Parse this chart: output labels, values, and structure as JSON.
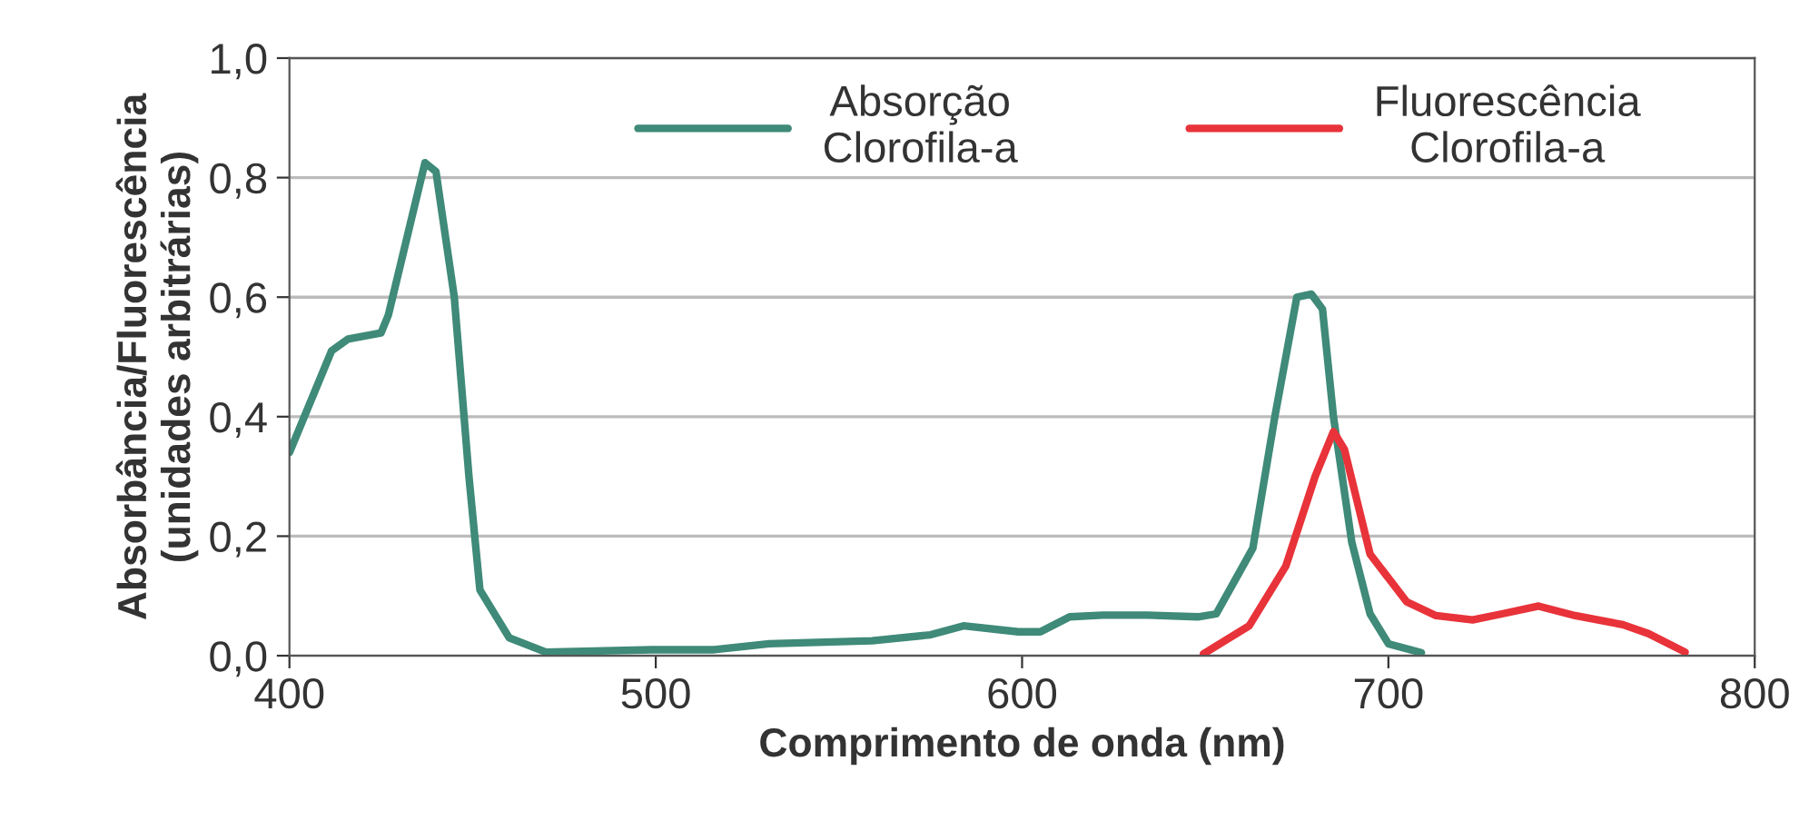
{
  "chart_data": {
    "type": "line",
    "xlabel": "Comprimento de onda (nm)",
    "ylabel": "Absorbância/Fluorescência\n(unidades arbitrárias)",
    "series": [
      {
        "name": "Absorção\nClorofila-a",
        "color": "#3f8a78",
        "x": [
          400,
          411.5,
          416,
          425,
          427,
          437,
          440,
          445,
          449,
          452,
          460,
          470,
          499,
          516,
          531,
          559,
          575,
          584,
          599,
          605,
          613,
          622,
          634,
          648,
          653,
          663,
          669,
          675,
          679,
          682,
          685,
          690,
          695,
          700,
          709
        ],
        "values": [
          0.34,
          0.51,
          0.53,
          0.54,
          0.57,
          0.825,
          0.81,
          0.6,
          0.3,
          0.11,
          0.03,
          0.006,
          0.01,
          0.01,
          0.02,
          0.025,
          0.035,
          0.05,
          0.04,
          0.04,
          0.065,
          0.068,
          0.068,
          0.065,
          0.07,
          0.18,
          0.4,
          0.6,
          0.605,
          0.58,
          0.4,
          0.19,
          0.07,
          0.02,
          0.005
        ]
      },
      {
        "name": "Fluorescência\nClorofila-a",
        "color": "#e8333a",
        "x": [
          649.5,
          662,
          672,
          680,
          685,
          688,
          695,
          705,
          713,
          723,
          731,
          741,
          751,
          764,
          771,
          781
        ],
        "values": [
          0.003,
          0.05,
          0.15,
          0.3,
          0.375,
          0.345,
          0.17,
          0.09,
          0.067,
          0.06,
          0.07,
          0.083,
          0.067,
          0.052,
          0.037,
          0.006
        ]
      }
    ],
    "xlim": [
      400,
      800
    ],
    "xticks": [
      400,
      500,
      600,
      700,
      800
    ],
    "ylim": [
      0,
      1
    ],
    "yticks": [
      {
        "value": 0,
        "label": "0,0"
      },
      {
        "value": 0.2,
        "label": "0,2"
      },
      {
        "value": 0.4,
        "label": "0,4"
      },
      {
        "value": 0.6,
        "label": "0,6"
      },
      {
        "value": 0.8,
        "label": "0,8"
      },
      {
        "value": 1,
        "label": "1,0"
      }
    ],
    "grid": "y",
    "legend": "top",
    "line_style": "solid",
    "marker": "none"
  }
}
